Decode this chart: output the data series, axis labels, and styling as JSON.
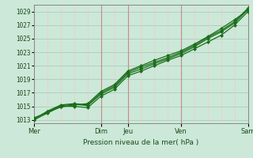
{
  "title": "",
  "xlabel": "Pression niveau de la mer( hPa )",
  "ylabel": "",
  "bg_color": "#cce8d8",
  "plot_bg_color": "#cce8d8",
  "line_color": "#1a6e1a",
  "grid_h_color": "#aaccbb",
  "grid_v_color_minor": "#f8c8c8",
  "grid_v_color_day": "#cc8888",
  "ylim": [
    1012.5,
    1030.0
  ],
  "yticks": [
    1013,
    1015,
    1017,
    1019,
    1021,
    1023,
    1025,
    1027,
    1029
  ],
  "day_labels": [
    "Mer",
    "Dim",
    "Jeu",
    "Ven",
    "Sam"
  ],
  "day_positions": [
    0.0,
    2.5,
    3.5,
    5.5,
    8.0
  ],
  "n_days": 8,
  "lines": [
    {
      "x": [
        0.0,
        0.5,
        1.0,
        1.5,
        2.0,
        2.5,
        3.0,
        3.5,
        4.0,
        4.5,
        5.0,
        5.5,
        6.0,
        6.5,
        7.0,
        7.5,
        8.0
      ],
      "y": [
        1013.0,
        1014.0,
        1015.0,
        1015.0,
        1014.8,
        1016.5,
        1017.5,
        1019.5,
        1020.2,
        1021.0,
        1021.8,
        1022.5,
        1023.5,
        1024.5,
        1025.5,
        1027.0,
        1029.0
      ]
    },
    {
      "x": [
        0.0,
        0.5,
        1.0,
        1.5,
        2.0,
        2.5,
        3.0,
        3.5,
        4.0,
        4.5,
        5.0,
        5.5,
        6.0,
        6.5,
        7.0,
        7.5,
        8.0
      ],
      "y": [
        1013.2,
        1014.2,
        1015.1,
        1015.3,
        1015.1,
        1016.8,
        1017.8,
        1019.8,
        1020.5,
        1021.3,
        1022.0,
        1022.8,
        1023.8,
        1025.0,
        1026.0,
        1027.3,
        1029.3
      ]
    },
    {
      "x": [
        0.0,
        0.5,
        1.0,
        1.5,
        2.0,
        2.5,
        3.0,
        3.5,
        4.0,
        4.5,
        5.0,
        5.5,
        6.0,
        6.5,
        7.0,
        7.5,
        8.0
      ],
      "y": [
        1013.1,
        1014.3,
        1015.2,
        1015.4,
        1015.2,
        1017.0,
        1018.0,
        1020.0,
        1020.8,
        1021.5,
        1022.2,
        1023.0,
        1024.0,
        1025.2,
        1026.2,
        1027.5,
        1029.5
      ]
    },
    {
      "x": [
        0.0,
        0.5,
        1.0,
        1.5,
        2.0,
        2.5,
        3.0,
        3.5,
        4.0,
        4.5,
        5.0,
        5.5,
        6.0,
        6.5,
        7.0,
        7.5,
        8.0
      ],
      "y": [
        1013.3,
        1014.1,
        1014.9,
        1015.2,
        1015.4,
        1017.2,
        1018.2,
        1020.2,
        1021.0,
        1021.8,
        1022.5,
        1023.2,
        1024.2,
        1025.3,
        1026.5,
        1027.8,
        1029.2
      ]
    }
  ],
  "minor_v_positions": [
    0.5,
    1.0,
    1.5,
    2.0,
    3.0,
    4.0,
    4.5,
    5.0,
    6.0,
    6.5,
    7.0,
    7.5
  ]
}
